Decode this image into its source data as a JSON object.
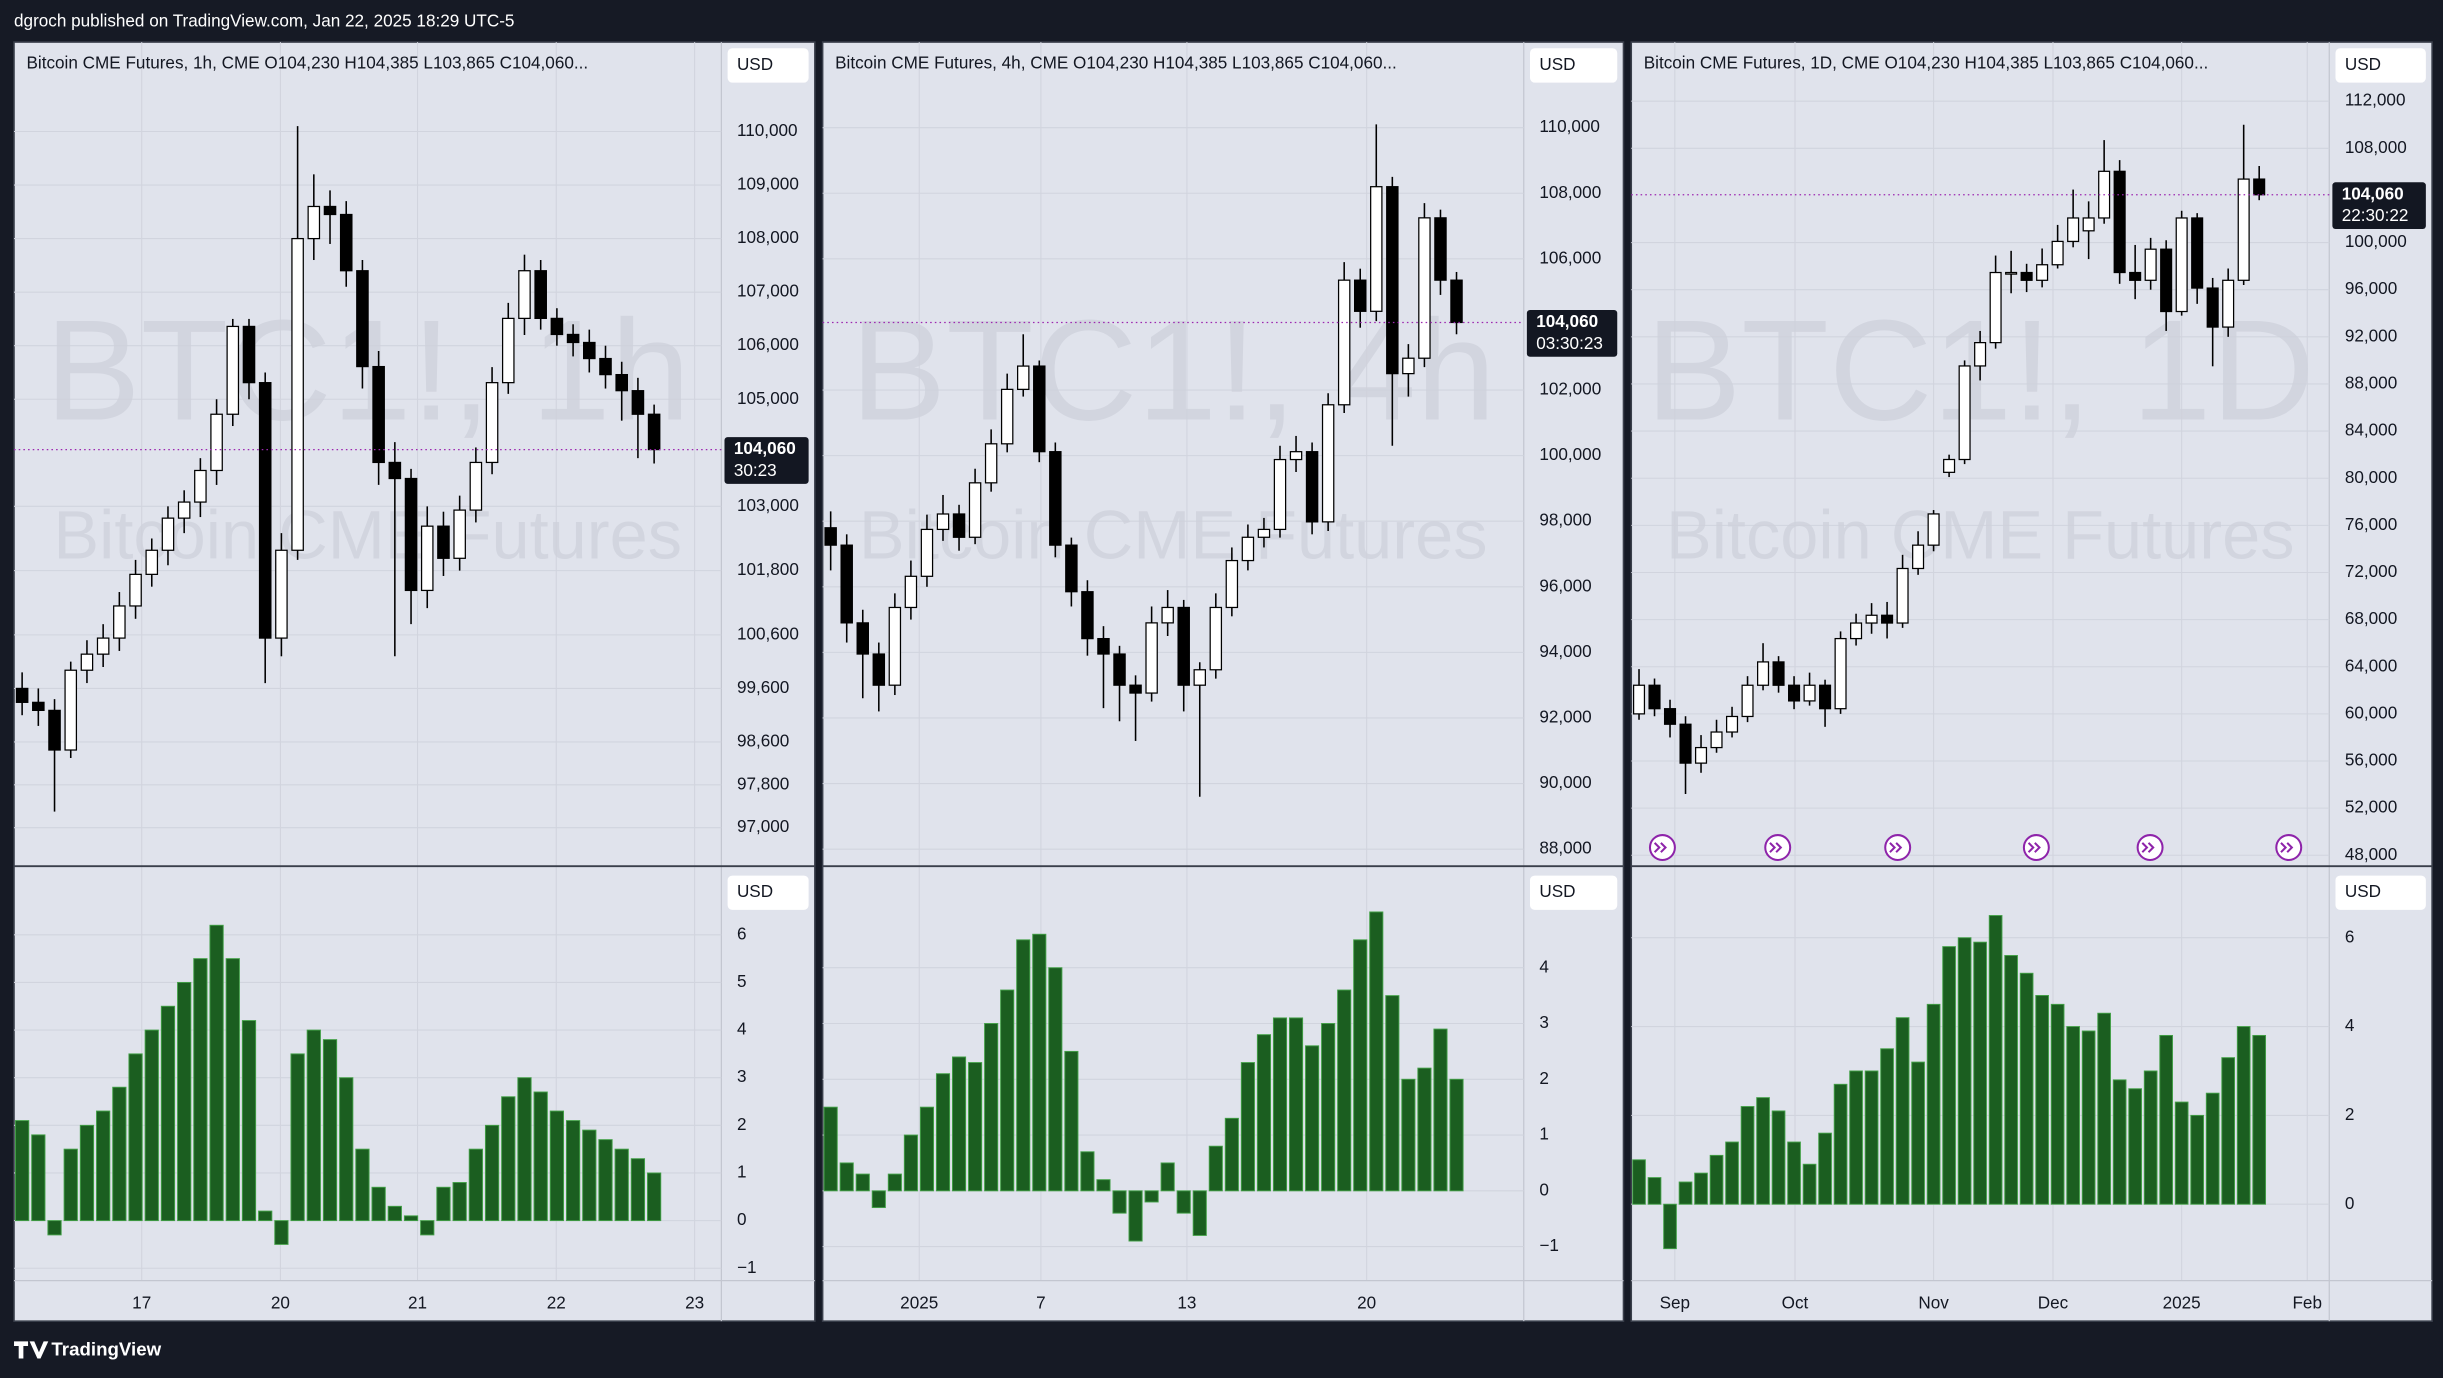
{
  "header": "dgroch published on TradingView.com, Jan 22, 2025 18:29 UTC-5",
  "footer": "TradingView",
  "chart_data": [
    {
      "type": "candlestick",
      "title": "Bitcoin CME Futures, 1h, CME  O104,230  H104,385  L103,865  C104,060...",
      "watermark": "BTC1!, 1h",
      "watermark_subtitle": "Bitcoin CME Futures",
      "currency": "USD",
      "up_color": "#ffffff",
      "down_color": "#000000",
      "wick_color": "#000000",
      "grid": true,
      "ylim": [
        96280,
        111670
      ],
      "yticks": [
        {
          "value": 110000,
          "label": "110,000"
        },
        {
          "value": 109000,
          "label": "109,000"
        },
        {
          "value": 108000,
          "label": "108,000"
        },
        {
          "value": 107000,
          "label": "107,000"
        },
        {
          "value": 106000,
          "label": "106,000"
        },
        {
          "value": 105000,
          "label": "105,000"
        },
        {
          "value": 103000,
          "label": "103,000"
        },
        {
          "value": 101800,
          "label": "101,800"
        },
        {
          "value": 100600,
          "label": "100,600"
        },
        {
          "value": 99600,
          "label": "99,600"
        },
        {
          "value": 98600,
          "label": "98,600"
        },
        {
          "value": 97800,
          "label": "97,800"
        },
        {
          "value": 97000,
          "label": "97,000"
        }
      ],
      "xlim": [
        -0.5,
        43.15
      ],
      "xticks": [
        {
          "value": 7.38,
          "label": "17"
        },
        {
          "value": 15.94,
          "label": "20"
        },
        {
          "value": 24.4,
          "label": "21"
        },
        {
          "value": 32.96,
          "label": "22"
        },
        {
          "value": 41.5,
          "label": "23"
        }
      ],
      "last_price": 104060,
      "last_label": "104,060",
      "countdown": "30:23",
      "last_color": "#9c27b0",
      "ohlc": [
        [
          99600,
          99900,
          99100,
          99340
        ],
        [
          99340,
          99600,
          98900,
          99190
        ],
        [
          99190,
          99400,
          97300,
          98450
        ],
        [
          98450,
          100100,
          98300,
          99940
        ],
        [
          99940,
          100500,
          99700,
          100240
        ],
        [
          100240,
          100800,
          100000,
          100540
        ],
        [
          100540,
          101400,
          100300,
          101140
        ],
        [
          101140,
          102000,
          100900,
          101730
        ],
        [
          101730,
          102400,
          101500,
          102180
        ],
        [
          102180,
          103000,
          101900,
          102780
        ],
        [
          102780,
          103300,
          102500,
          103080
        ],
        [
          103080,
          103900,
          102800,
          103670
        ],
        [
          103670,
          105000,
          103400,
          104720
        ],
        [
          104720,
          106500,
          104500,
          106360
        ],
        [
          106360,
          106500,
          105000,
          105310
        ],
        [
          105310,
          105500,
          99700,
          100540
        ],
        [
          100540,
          102500,
          100200,
          102180
        ],
        [
          102180,
          110100,
          102000,
          108000
        ],
        [
          108000,
          109200,
          107600,
          108600
        ],
        [
          108600,
          108900,
          107900,
          108450
        ],
        [
          108450,
          108700,
          107100,
          107400
        ],
        [
          107400,
          107600,
          105200,
          105610
        ],
        [
          105610,
          105900,
          103400,
          103820
        ],
        [
          103820,
          104200,
          100200,
          103520
        ],
        [
          103520,
          103700,
          100800,
          101430
        ],
        [
          101430,
          103000,
          101100,
          102630
        ],
        [
          102630,
          102900,
          101700,
          102030
        ],
        [
          102030,
          103200,
          101800,
          102930
        ],
        [
          102930,
          104100,
          102700,
          103820
        ],
        [
          103820,
          105600,
          103600,
          105310
        ],
        [
          105310,
          106800,
          105100,
          106510
        ],
        [
          106510,
          107700,
          106200,
          107400
        ],
        [
          107400,
          107600,
          106300,
          106510
        ],
        [
          106510,
          106700,
          106000,
          106210
        ],
        [
          106210,
          106400,
          105800,
          106060
        ],
        [
          106060,
          106300,
          105500,
          105760
        ],
        [
          105760,
          106000,
          105200,
          105460
        ],
        [
          105460,
          105700,
          104600,
          105160
        ],
        [
          105160,
          105400,
          103900,
          104720
        ],
        [
          104720,
          104900,
          103800,
          104060
        ]
      ]
    },
    {
      "type": "bar",
      "currency": "USD",
      "color": "#1b5e20",
      "edgecolor": "#43a047",
      "grid": true,
      "ylim": [
        -1.26,
        7.44
      ],
      "yticks": [
        6,
        5,
        4,
        3,
        2,
        1,
        0,
        {
          "value": -1,
          "label": "−1"
        }
      ],
      "values": [
        2.1,
        1.8,
        -0.3,
        1.5,
        2.0,
        2.3,
        2.8,
        3.5,
        4.0,
        4.5,
        5.0,
        5.5,
        6.2,
        5.5,
        4.2,
        0.2,
        -0.5,
        3.5,
        4.0,
        3.8,
        3.0,
        1.5,
        0.7,
        0.3,
        0.1,
        -0.3,
        0.7,
        0.8,
        1.5,
        2.0,
        2.6,
        3.0,
        2.7,
        2.3,
        2.1,
        1.9,
        1.7,
        1.5,
        1.3,
        1.0
      ]
    },
    {
      "type": "candlestick",
      "title": "Bitcoin CME Futures, 4h, CME  O104,230  H104,385  L103,865  C104,060...",
      "watermark": "BTC1!, 4h",
      "watermark_subtitle": "Bitcoin CME Futures",
      "currency": "USD",
      "up_color": "#ffffff",
      "down_color": "#000000",
      "wick_color": "#000000",
      "grid": true,
      "ylim": [
        87480,
        112610
      ],
      "yticks": [
        {
          "value": 110000,
          "label": "110,000"
        },
        {
          "value": 108000,
          "label": "108,000"
        },
        {
          "value": 106000,
          "label": "106,000"
        },
        {
          "value": 102000,
          "label": "102,000"
        },
        {
          "value": 100000,
          "label": "100,000"
        },
        {
          "value": 98000,
          "label": "98,000"
        },
        {
          "value": 96000,
          "label": "96,000"
        },
        {
          "value": 94000,
          "label": "94,000"
        },
        {
          "value": 92000,
          "label": "92,000"
        },
        {
          "value": 90000,
          "label": "90,000"
        },
        {
          "value": 88000,
          "label": "88,000"
        }
      ],
      "xlim": [
        -0.5,
        43.19
      ],
      "xticks": [
        {
          "value": 5.52,
          "label": "2025"
        },
        {
          "value": 13.1,
          "label": "7"
        },
        {
          "value": 22.2,
          "label": "13"
        },
        {
          "value": 33.4,
          "label": "20"
        }
      ],
      "last_price": 104060,
      "last_label": "104,060",
      "countdown": "03:30:23",
      "last_color": "#9c27b0",
      "ohlc": [
        [
          97800,
          98300,
          96500,
          97270
        ],
        [
          97270,
          97600,
          94300,
          94900
        ],
        [
          94900,
          95300,
          92600,
          93950
        ],
        [
          93950,
          94300,
          92200,
          93000
        ],
        [
          93000,
          95800,
          92700,
          95370
        ],
        [
          95370,
          96800,
          95000,
          96320
        ],
        [
          96320,
          98200,
          96000,
          97750
        ],
        [
          97750,
          98800,
          97400,
          98220
        ],
        [
          98220,
          98500,
          97100,
          97510
        ],
        [
          97510,
          99600,
          97300,
          99170
        ],
        [
          99170,
          100800,
          98900,
          100360
        ],
        [
          100360,
          102500,
          100100,
          102020
        ],
        [
          102020,
          103700,
          101800,
          102730
        ],
        [
          102730,
          102900,
          99800,
          100120
        ],
        [
          100120,
          100400,
          96900,
          97270
        ],
        [
          97270,
          97500,
          95400,
          95850
        ],
        [
          95850,
          96200,
          93900,
          94420
        ],
        [
          94420,
          94800,
          92300,
          93950
        ],
        [
          93950,
          94200,
          91900,
          93000
        ],
        [
          93000,
          93300,
          91300,
          92760
        ],
        [
          92760,
          95400,
          92500,
          94900
        ],
        [
          94900,
          95900,
          94500,
          95370
        ],
        [
          95370,
          95600,
          92200,
          93000
        ],
        [
          93000,
          93700,
          89600,
          93470
        ],
        [
          93470,
          95800,
          93200,
          95370
        ],
        [
          95370,
          97200,
          95100,
          96800
        ],
        [
          96800,
          97900,
          96500,
          97510
        ],
        [
          97510,
          98100,
          97200,
          97750
        ],
        [
          97750,
          100300,
          97500,
          99880
        ],
        [
          99880,
          100600,
          99500,
          100120
        ],
        [
          100120,
          100400,
          97600,
          97980
        ],
        [
          97980,
          101900,
          97700,
          101550
        ],
        [
          101550,
          105900,
          101300,
          105350
        ],
        [
          105350,
          105700,
          103900,
          104400
        ],
        [
          104400,
          110100,
          104100,
          108200
        ],
        [
          108200,
          108500,
          100300,
          102500
        ],
        [
          102500,
          103400,
          101800,
          102970
        ],
        [
          102970,
          107700,
          102700,
          107250
        ],
        [
          107250,
          107500,
          104900,
          105350
        ],
        [
          105350,
          105600,
          103700,
          104060
        ]
      ]
    },
    {
      "type": "bar",
      "currency": "USD",
      "color": "#1b5e20",
      "edgecolor": "#43a047",
      "grid": true,
      "ylim": [
        -1.61,
        5.82
      ],
      "yticks": [
        4,
        3,
        2,
        1,
        0,
        {
          "value": -1,
          "label": "−1"
        }
      ],
      "values": [
        1.5,
        0.5,
        0.3,
        -0.3,
        0.3,
        1.0,
        1.5,
        2.1,
        2.4,
        2.3,
        3.0,
        3.6,
        4.5,
        4.6,
        4.0,
        2.5,
        0.7,
        0.2,
        -0.4,
        -0.9,
        -0.2,
        0.5,
        -0.4,
        -0.8,
        0.8,
        1.3,
        2.3,
        2.8,
        3.1,
        3.1,
        2.6,
        3.0,
        3.6,
        4.5,
        5.0,
        3.5,
        2.0,
        2.2,
        2.9,
        2.0
      ]
    },
    {
      "type": "candlestick",
      "title": "Bitcoin CME Futures, 1D, CME  O104,230  H104,385  L103,865  C104,060...",
      "watermark": "BTC1!, 1D",
      "watermark_subtitle": "Bitcoin CME Futures",
      "currency": "USD",
      "up_color": "#ffffff",
      "down_color": "#000000",
      "wick_color": "#000000",
      "grid": true,
      "ylim": [
        47070,
        117020
      ],
      "yticks": [
        {
          "value": 112000,
          "label": "112,000"
        },
        {
          "value": 108000,
          "label": "108,000"
        },
        {
          "value": 100000,
          "label": "100,000"
        },
        {
          "value": 96000,
          "label": "96,000"
        },
        {
          "value": 92000,
          "label": "92,000"
        },
        {
          "value": 88000,
          "label": "88,000"
        },
        {
          "value": 84000,
          "label": "84,000"
        },
        {
          "value": 80000,
          "label": "80,000"
        },
        {
          "value": 76000,
          "label": "76,000"
        },
        {
          "value": 72000,
          "label": "72,000"
        },
        {
          "value": 68000,
          "label": "68,000"
        },
        {
          "value": 64000,
          "label": "64,000"
        },
        {
          "value": 60000,
          "label": "60,000"
        },
        {
          "value": 56000,
          "label": "56,000"
        },
        {
          "value": 52000,
          "label": "52,000"
        },
        {
          "value": 48000,
          "label": "48,000"
        }
      ],
      "xlim": [
        -0.5,
        44.52
      ],
      "xticks": [
        {
          "value": 2.31,
          "label": "Sep"
        },
        {
          "value": 10.06,
          "label": "Oct"
        },
        {
          "value": 19.0,
          "label": "Nov"
        },
        {
          "value": 26.7,
          "label": "Dec"
        },
        {
          "value": 35.0,
          "label": "2025"
        },
        {
          "value": 43.1,
          "label": "Feb"
        }
      ],
      "last_price": 104060,
      "last_label": "104,060",
      "countdown": "22:30:22",
      "last_color": "#9c27b0",
      "ohlc": [
        [
          60000,
          63800,
          59500,
          62430
        ],
        [
          62430,
          63000,
          59800,
          60440
        ],
        [
          60440,
          61200,
          58000,
          59120
        ],
        [
          59120,
          59800,
          53200,
          55820
        ],
        [
          55820,
          58200,
          55000,
          57140
        ],
        [
          57140,
          59500,
          56700,
          58460
        ],
        [
          58460,
          60600,
          58000,
          59780
        ],
        [
          59780,
          63200,
          59300,
          62430
        ],
        [
          62430,
          66000,
          62000,
          64410
        ],
        [
          64410,
          64900,
          61800,
          62430
        ],
        [
          62430,
          63200,
          60400,
          61100
        ],
        [
          61100,
          63500,
          60700,
          62430
        ],
        [
          62430,
          62900,
          58900,
          60440
        ],
        [
          60440,
          67000,
          60000,
          66390
        ],
        [
          66390,
          68500,
          65800,
          67710
        ],
        [
          67710,
          69400,
          66800,
          68370
        ],
        [
          68370,
          69500,
          66400,
          67710
        ],
        [
          67710,
          73500,
          67300,
          72340
        ],
        [
          72340,
          75500,
          71800,
          74320
        ],
        [
          74320,
          77300,
          73800,
          76970
        ],
        [
          80500,
          82000,
          80100,
          81590
        ],
        [
          81590,
          90000,
          81200,
          89530
        ],
        [
          89530,
          92500,
          88300,
          91510
        ],
        [
          91510,
          98900,
          91000,
          97460
        ],
        [
          97460,
          99300,
          95700,
          97460
        ],
        [
          97460,
          98200,
          95800,
          96800
        ],
        [
          96800,
          99500,
          96200,
          98120
        ],
        [
          98120,
          101500,
          97800,
          100100
        ],
        [
          100100,
          104500,
          99600,
          102090
        ],
        [
          101000,
          103500,
          98600,
          102090
        ],
        [
          102090,
          108700,
          101600,
          106050
        ],
        [
          106050,
          107000,
          96500,
          97460
        ],
        [
          97460,
          99800,
          95200,
          96800
        ],
        [
          96800,
          100400,
          96000,
          99440
        ],
        [
          99440,
          100200,
          92500,
          94150
        ],
        [
          94150,
          102700,
          93800,
          102090
        ],
        [
          102090,
          102500,
          94800,
          96140
        ],
        [
          96140,
          97000,
          89500,
          92830
        ],
        [
          92830,
          97800,
          92000,
          96800
        ],
        [
          96800,
          110000,
          96400,
          105390
        ],
        [
          105390,
          106500,
          103600,
          104060
        ]
      ]
    },
    {
      "type": "bar",
      "currency": "USD",
      "color": "#1b5e20",
      "edgecolor": "#43a047",
      "grid": true,
      "ylim": [
        -1.72,
        7.61
      ],
      "yticks": [
        6,
        4,
        2,
        0
      ],
      "values": [
        1.0,
        0.6,
        -1.0,
        0.5,
        0.7,
        1.1,
        1.4,
        2.2,
        2.4,
        2.1,
        1.4,
        0.9,
        1.6,
        2.7,
        3.0,
        3.0,
        3.5,
        4.2,
        3.2,
        4.5,
        5.8,
        6.0,
        5.9,
        6.5,
        5.6,
        5.2,
        4.7,
        4.5,
        4.0,
        3.9,
        4.3,
        2.8,
        2.6,
        3.0,
        3.8,
        2.3,
        2.0,
        2.5,
        3.3,
        4.0,
        3.8
      ]
    }
  ]
}
